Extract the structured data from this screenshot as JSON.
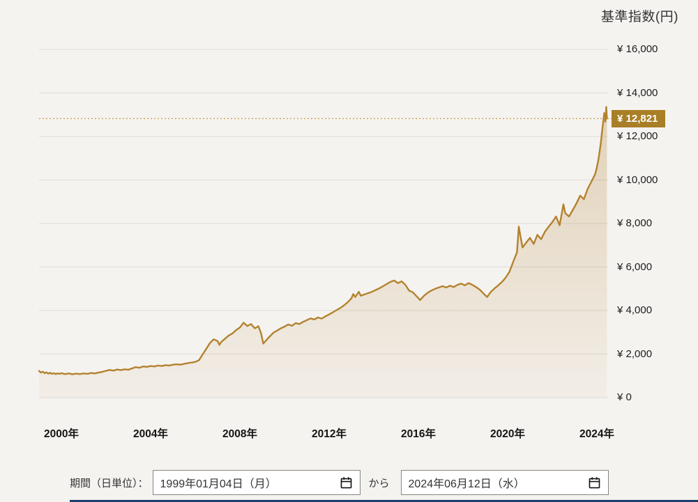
{
  "chart_data": {
    "type": "area",
    "title": "基準指数(円)",
    "xlabel": "",
    "ylabel": "基準指数(円)",
    "ylim": [
      0,
      16000
    ],
    "xlim": [
      1999.0,
      2024.45
    ],
    "grid": true,
    "legend_position": "none",
    "y_ticks": [
      {
        "value": 16000,
        "label": "¥ 16,000"
      },
      {
        "value": 14000,
        "label": "¥ 14,000"
      },
      {
        "value": 12000,
        "label": "¥ 12,000"
      },
      {
        "value": 10000,
        "label": "¥ 10,000"
      },
      {
        "value": 8000,
        "label": "¥ 8,000"
      },
      {
        "value": 6000,
        "label": "¥ 6,000"
      },
      {
        "value": 4000,
        "label": "¥ 4,000"
      },
      {
        "value": 2000,
        "label": "¥ 2,000"
      },
      {
        "value": 0,
        "label": "¥ 0"
      }
    ],
    "x_ticks": [
      {
        "value": 2000,
        "label": "2000年"
      },
      {
        "value": 2004,
        "label": "2004年"
      },
      {
        "value": 2008,
        "label": "2008年"
      },
      {
        "value": 2012,
        "label": "2012年"
      },
      {
        "value": 2016,
        "label": "2016年"
      },
      {
        "value": 2020,
        "label": "2020年"
      },
      {
        "value": 2024,
        "label": "2024年"
      }
    ],
    "current": {
      "value": 12821,
      "label": "¥ 12,821"
    },
    "colors": {
      "line": "#b3822f",
      "fill_from": "rgba(181,133,58,0.30)",
      "fill_to": "rgba(181,133,58,0.05)",
      "marker_line": "#c49a3f",
      "badge_bg": "#a87f27",
      "grid": "#dedbd5"
    },
    "series": [
      {
        "name": "基準指数",
        "color": "#b3822f",
        "points": [
          [
            1999.0,
            1230
          ],
          [
            1999.08,
            1150
          ],
          [
            1999.17,
            1190
          ],
          [
            1999.25,
            1120
          ],
          [
            1999.33,
            1160
          ],
          [
            1999.42,
            1100
          ],
          [
            1999.5,
            1140
          ],
          [
            1999.58,
            1090
          ],
          [
            1999.67,
            1120
          ],
          [
            1999.75,
            1080
          ],
          [
            1999.83,
            1110
          ],
          [
            1999.92,
            1090
          ],
          [
            2000.0,
            1120
          ],
          [
            2000.17,
            1080
          ],
          [
            2000.33,
            1110
          ],
          [
            2000.5,
            1070
          ],
          [
            2000.67,
            1100
          ],
          [
            2000.83,
            1080
          ],
          [
            2001.0,
            1110
          ],
          [
            2001.17,
            1090
          ],
          [
            2001.33,
            1130
          ],
          [
            2001.5,
            1110
          ],
          [
            2001.67,
            1150
          ],
          [
            2001.83,
            1180
          ],
          [
            2002.0,
            1230
          ],
          [
            2002.17,
            1270
          ],
          [
            2002.33,
            1240
          ],
          [
            2002.5,
            1290
          ],
          [
            2002.67,
            1260
          ],
          [
            2002.83,
            1300
          ],
          [
            2003.0,
            1280
          ],
          [
            2003.17,
            1340
          ],
          [
            2003.33,
            1400
          ],
          [
            2003.5,
            1370
          ],
          [
            2003.67,
            1430
          ],
          [
            2003.83,
            1410
          ],
          [
            2004.0,
            1450
          ],
          [
            2004.17,
            1430
          ],
          [
            2004.33,
            1470
          ],
          [
            2004.5,
            1450
          ],
          [
            2004.67,
            1490
          ],
          [
            2004.83,
            1470
          ],
          [
            2005.0,
            1510
          ],
          [
            2005.17,
            1530
          ],
          [
            2005.33,
            1510
          ],
          [
            2005.5,
            1550
          ],
          [
            2005.67,
            1580
          ],
          [
            2005.83,
            1610
          ],
          [
            2006.0,
            1640
          ],
          [
            2006.17,
            1720
          ],
          [
            2006.33,
            1980
          ],
          [
            2006.5,
            2250
          ],
          [
            2006.67,
            2520
          ],
          [
            2006.83,
            2680
          ],
          [
            2007.0,
            2600
          ],
          [
            2007.08,
            2420
          ],
          [
            2007.17,
            2560
          ],
          [
            2007.33,
            2700
          ],
          [
            2007.5,
            2850
          ],
          [
            2007.67,
            2950
          ],
          [
            2007.83,
            3100
          ],
          [
            2008.0,
            3220
          ],
          [
            2008.17,
            3440
          ],
          [
            2008.33,
            3290
          ],
          [
            2008.5,
            3380
          ],
          [
            2008.67,
            3180
          ],
          [
            2008.83,
            3280
          ],
          [
            2008.95,
            2950
          ],
          [
            2009.05,
            2480
          ],
          [
            2009.17,
            2620
          ],
          [
            2009.33,
            2800
          ],
          [
            2009.5,
            2980
          ],
          [
            2009.67,
            3080
          ],
          [
            2009.83,
            3180
          ],
          [
            2010.0,
            3260
          ],
          [
            2010.17,
            3360
          ],
          [
            2010.33,
            3300
          ],
          [
            2010.5,
            3420
          ],
          [
            2010.67,
            3380
          ],
          [
            2010.83,
            3480
          ],
          [
            2011.0,
            3560
          ],
          [
            2011.17,
            3640
          ],
          [
            2011.33,
            3590
          ],
          [
            2011.5,
            3680
          ],
          [
            2011.67,
            3630
          ],
          [
            2011.83,
            3730
          ],
          [
            2012.0,
            3820
          ],
          [
            2012.17,
            3920
          ],
          [
            2012.33,
            4020
          ],
          [
            2012.5,
            4120
          ],
          [
            2012.67,
            4240
          ],
          [
            2012.83,
            4380
          ],
          [
            2013.0,
            4560
          ],
          [
            2013.08,
            4760
          ],
          [
            2013.17,
            4620
          ],
          [
            2013.33,
            4860
          ],
          [
            2013.42,
            4680
          ],
          [
            2013.58,
            4740
          ],
          [
            2013.75,
            4800
          ],
          [
            2013.92,
            4860
          ],
          [
            2014.08,
            4940
          ],
          [
            2014.25,
            5020
          ],
          [
            2014.42,
            5120
          ],
          [
            2014.58,
            5220
          ],
          [
            2014.75,
            5320
          ],
          [
            2014.92,
            5380
          ],
          [
            2015.08,
            5260
          ],
          [
            2015.25,
            5340
          ],
          [
            2015.42,
            5180
          ],
          [
            2015.58,
            4920
          ],
          [
            2015.75,
            4840
          ],
          [
            2015.92,
            4660
          ],
          [
            2016.08,
            4480
          ],
          [
            2016.25,
            4680
          ],
          [
            2016.42,
            4820
          ],
          [
            2016.58,
            4920
          ],
          [
            2016.75,
            5000
          ],
          [
            2016.92,
            5060
          ],
          [
            2017.08,
            5120
          ],
          [
            2017.25,
            5060
          ],
          [
            2017.42,
            5140
          ],
          [
            2017.58,
            5080
          ],
          [
            2017.75,
            5180
          ],
          [
            2017.92,
            5240
          ],
          [
            2018.08,
            5160
          ],
          [
            2018.25,
            5260
          ],
          [
            2018.42,
            5180
          ],
          [
            2018.58,
            5080
          ],
          [
            2018.75,
            4960
          ],
          [
            2018.92,
            4780
          ],
          [
            2019.08,
            4620
          ],
          [
            2019.25,
            4860
          ],
          [
            2019.42,
            5020
          ],
          [
            2019.58,
            5160
          ],
          [
            2019.75,
            5320
          ],
          [
            2019.92,
            5520
          ],
          [
            2020.08,
            5780
          ],
          [
            2020.25,
            6240
          ],
          [
            2020.42,
            6680
          ],
          [
            2020.5,
            7860
          ],
          [
            2020.58,
            7380
          ],
          [
            2020.67,
            6900
          ],
          [
            2020.83,
            7120
          ],
          [
            2021.0,
            7340
          ],
          [
            2021.17,
            7060
          ],
          [
            2021.33,
            7480
          ],
          [
            2021.5,
            7280
          ],
          [
            2021.67,
            7620
          ],
          [
            2021.83,
            7840
          ],
          [
            2022.0,
            8060
          ],
          [
            2022.17,
            8320
          ],
          [
            2022.33,
            7920
          ],
          [
            2022.5,
            8880
          ],
          [
            2022.58,
            8480
          ],
          [
            2022.75,
            8320
          ],
          [
            2022.92,
            8620
          ],
          [
            2023.08,
            8920
          ],
          [
            2023.25,
            9280
          ],
          [
            2023.42,
            9120
          ],
          [
            2023.58,
            9580
          ],
          [
            2023.75,
            9920
          ],
          [
            2023.92,
            10260
          ],
          [
            2024.0,
            10580
          ],
          [
            2024.08,
            11020
          ],
          [
            2024.17,
            11640
          ],
          [
            2024.25,
            12400
          ],
          [
            2024.33,
            13080
          ],
          [
            2024.38,
            12680
          ],
          [
            2024.42,
            13360
          ],
          [
            2024.45,
            12821
          ]
        ]
      }
    ]
  },
  "period": {
    "label": "期間（日単位）：",
    "from": "1999年01月04日（月）",
    "connector": "から",
    "to": "2024年06月12日（水）"
  }
}
